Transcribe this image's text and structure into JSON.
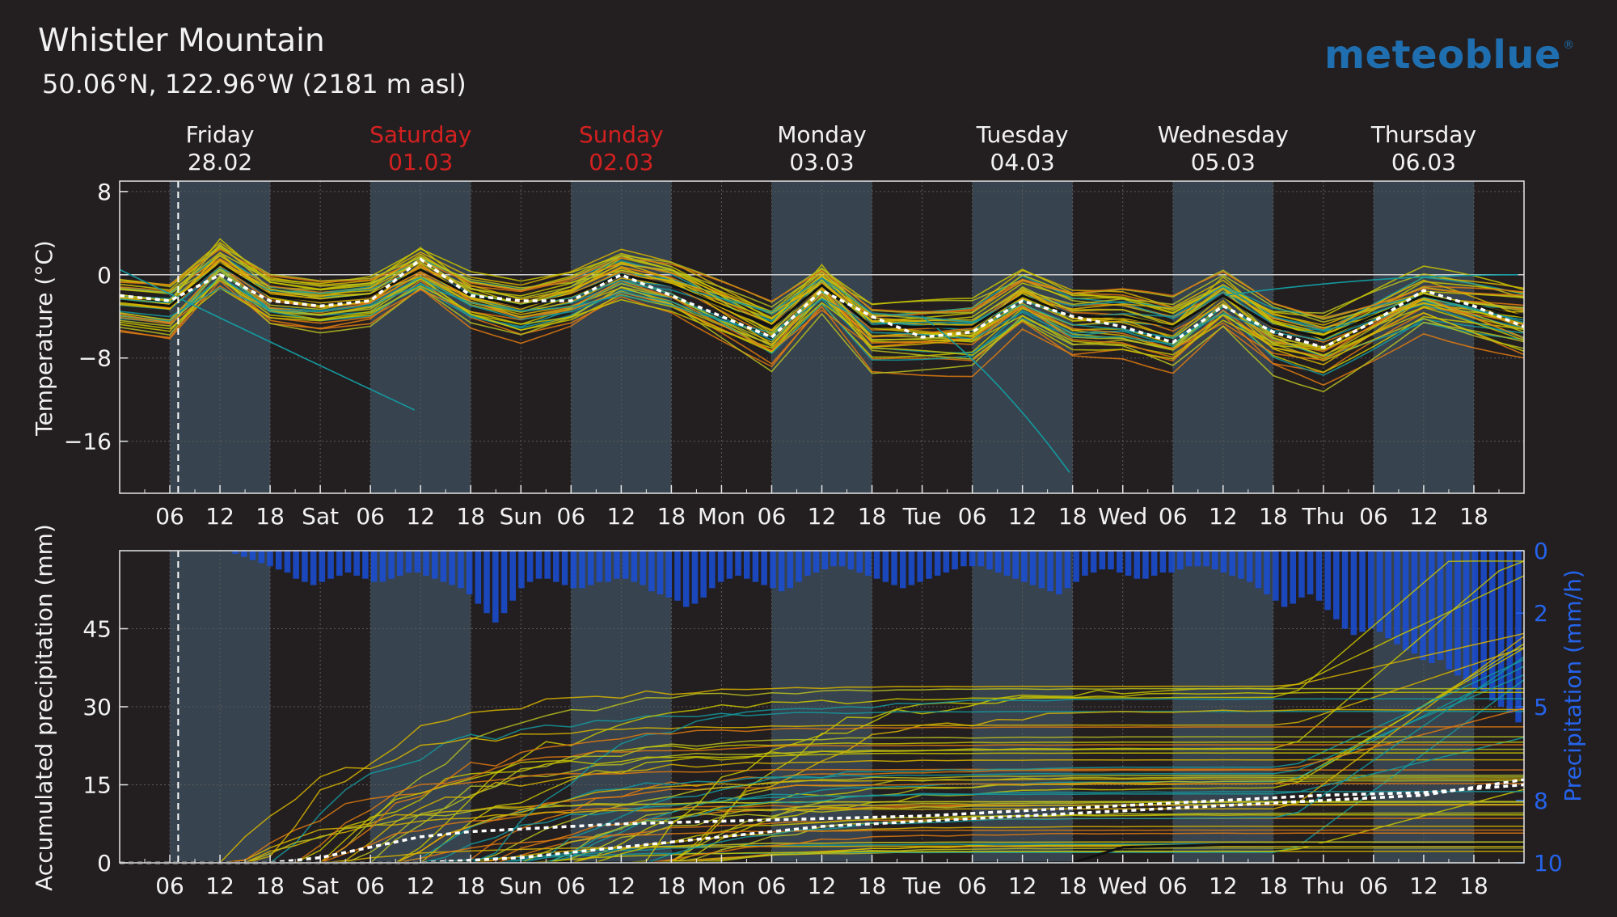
{
  "header": {
    "title": "Whistler Mountain",
    "subtitle": "50.06°N, 122.96°W (2181 m asl)",
    "logo_text": "meteoblue",
    "logo_mark": "®",
    "logo_color": "#1f6fb0"
  },
  "days": [
    {
      "name": "Friday",
      "date": "28.02",
      "weekend": false
    },
    {
      "name": "Saturday",
      "date": "01.03",
      "weekend": true
    },
    {
      "name": "Sunday",
      "date": "02.03",
      "weekend": true
    },
    {
      "name": "Monday",
      "date": "03.03",
      "weekend": false
    },
    {
      "name": "Tuesday",
      "date": "04.03",
      "weekend": false
    },
    {
      "name": "Wednesday",
      "date": "05.03",
      "weekend": false
    },
    {
      "name": "Thursday",
      "date": "06.03",
      "weekend": false
    }
  ],
  "x_tick_labels": [
    "06",
    "12",
    "18",
    "Sat",
    "06",
    "12",
    "18",
    "Sun",
    "06",
    "12",
    "18",
    "Mon",
    "06",
    "12",
    "18",
    "Tue",
    "06",
    "12",
    "18",
    "Wed",
    "06",
    "12",
    "18",
    "Thu",
    "06",
    "12",
    "18"
  ],
  "colors": {
    "background": "#231f20",
    "daylight_band": "#37434e",
    "weekend_text": "#d42020",
    "precip_bars": "#1a4fd8",
    "precip_axis": "#2563eb",
    "member_colors": [
      "#c9c400",
      "#d8b400",
      "#e07a10",
      "#149aa0",
      "#b8c020"
    ]
  },
  "chart_data": [
    {
      "type": "line",
      "title": "",
      "ylabel": "Temperature (°C)",
      "ylim": [
        -21,
        9
      ],
      "yticks": [
        8,
        0,
        -8,
        -16
      ],
      "ytick_labels": [
        "8",
        "0",
        "−8",
        "−16"
      ],
      "x_unit": "hours since 28.02 00:00",
      "xlim": [
        0,
        168
      ],
      "grid": true,
      "ensemble_members": 40,
      "series": [
        {
          "x": [
            0,
            6,
            12,
            18,
            24,
            30,
            36,
            42,
            48,
            54,
            60,
            66,
            72,
            78,
            84,
            90,
            96,
            102,
            108,
            114,
            120,
            126,
            132,
            138,
            144,
            150,
            156,
            162,
            168
          ],
          "values": [
            -2.5,
            -3,
            1,
            -2,
            -2.5,
            -2,
            0.5,
            -2,
            -3,
            -2,
            0,
            -1,
            -3,
            -5,
            -1,
            -5,
            -5,
            -5,
            -2,
            -4,
            -4,
            -5,
            -2,
            -5,
            -6,
            -4,
            -2,
            -3,
            -4
          ]
        },
        {
          "x": [
            0,
            6,
            12,
            18,
            24,
            30,
            36,
            42,
            48,
            54,
            60,
            66,
            72,
            78,
            84,
            90,
            96,
            102,
            108,
            114,
            120,
            126,
            132,
            138,
            144,
            150,
            156,
            162,
            168
          ],
          "values": [
            -2,
            -2.5,
            0,
            -2.5,
            -3,
            -2.5,
            1.5,
            -2,
            -2.5,
            -2.5,
            0,
            -2,
            -4,
            -6,
            -1.5,
            -4,
            -6,
            -5.5,
            -2.5,
            -4,
            -5,
            -6.5,
            -3,
            -5.5,
            -7,
            -4.5,
            -1.5,
            -3,
            -5
          ]
        }
      ],
      "vertical_marker_x": 7
    },
    {
      "type": "line",
      "title": "",
      "ylabel": "Accumulated precipitation (mm)",
      "ylabel_right": "Precipitation (mm/h)",
      "ylim": [
        0,
        60
      ],
      "yticks": [
        0,
        15,
        30,
        45
      ],
      "y2lim": [
        0,
        10
      ],
      "y2ticks": [
        0,
        2,
        5,
        8,
        10
      ],
      "x_unit": "hours since 28.02 00:00",
      "xlim": [
        0,
        168
      ],
      "series": [
        {
          "x": [
            0,
            12,
            18,
            24,
            30,
            36,
            42,
            48,
            54,
            60,
            72,
            84,
            96,
            108,
            120,
            132,
            144,
            156,
            168
          ],
          "values": [
            0,
            0,
            0,
            1,
            3,
            5,
            6,
            6.5,
            7,
            7.5,
            8,
            8.5,
            9,
            10,
            11,
            12,
            13,
            13.5,
            15
          ]
        },
        {
          "x": [
            0,
            12,
            18,
            24,
            30,
            36,
            42,
            48,
            54,
            60,
            72,
            84,
            96,
            108,
            120,
            132,
            144,
            156,
            168
          ],
          "values": [
            0,
            0,
            0,
            0,
            0,
            0,
            0.5,
            1,
            2,
            3,
            5,
            7,
            8,
            9,
            10,
            11,
            12,
            13,
            16
          ]
        },
        {
          "x": [
            0,
            12,
            18,
            24,
            30,
            36,
            42,
            48,
            54,
            60,
            72,
            84,
            96,
            108,
            114,
            120,
            132,
            144,
            156,
            168
          ],
          "values": [
            0,
            0,
            0,
            0,
            0,
            0,
            0,
            0,
            0,
            0,
            0,
            0,
            0,
            0,
            0,
            3,
            3.5,
            3.5,
            3.5,
            3.5
          ]
        }
      ],
      "precip_rate_bars_mmh": [
        0,
        0,
        0,
        0,
        0,
        0,
        0,
        0,
        0,
        0,
        0,
        0,
        0,
        0.1,
        0.2,
        0.3,
        0.4,
        0.5,
        0.6,
        0.7,
        0.9,
        1.0,
        1.1,
        1.0,
        0.9,
        0.8,
        0.7,
        0.8,
        0.9,
        1.0,
        1.0,
        0.9,
        0.8,
        0.7,
        0.7,
        0.8,
        0.9,
        1.0,
        1.1,
        1.2,
        1.4,
        1.7,
        2.0,
        2.3,
        2.0,
        1.6,
        1.2,
        1.0,
        0.9,
        0.9,
        1.0,
        1.1,
        1.2,
        1.2,
        1.1,
        1.0,
        1.0,
        0.9,
        0.9,
        1.0,
        1.1,
        1.3,
        1.4,
        1.5,
        1.6,
        1.8,
        1.7,
        1.5,
        1.2,
        1.0,
        0.9,
        0.8,
        0.9,
        1.0,
        1.1,
        1.2,
        1.3,
        1.2,
        1.0,
        0.8,
        0.7,
        0.6,
        0.5,
        0.5,
        0.6,
        0.7,
        0.8,
        0.9,
        1.0,
        1.1,
        1.2,
        1.1,
        1.0,
        0.9,
        0.8,
        0.7,
        0.6,
        0.5,
        0.5,
        0.5,
        0.6,
        0.7,
        0.8,
        0.9,
        1.0,
        1.1,
        1.2,
        1.3,
        1.4,
        1.2,
        1.0,
        0.8,
        0.7,
        0.6,
        0.6,
        0.7,
        0.8,
        0.9,
        0.9,
        0.8,
        0.7,
        0.7,
        0.6,
        0.5,
        0.5,
        0.5,
        0.6,
        0.7,
        0.8,
        0.9,
        1.0,
        1.2,
        1.4,
        1.6,
        1.8,
        1.7,
        1.5,
        1.4,
        1.6,
        1.9,
        2.2,
        2.5,
        2.7,
        2.6,
        2.5,
        2.6,
        2.8,
        3.0,
        3.2,
        3.3,
        3.5,
        3.6,
        3.5,
        3.8,
        4.0,
        4.2,
        4.4,
        4.5,
        4.8,
        5.0,
        5.2,
        5.5
      ],
      "vertical_marker_x": 7
    }
  ]
}
